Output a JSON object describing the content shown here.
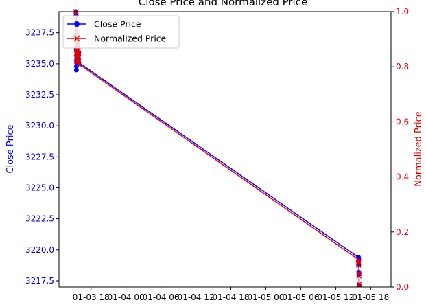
{
  "chart_data": {
    "type": "line",
    "title": "Close Price and Normalized Price",
    "xlabel": "",
    "y_left_label": "Close Price",
    "y_right_label": "Normalized Price",
    "x_tick_labels": [
      "01-03 18",
      "01-04 00",
      "01-04 06",
      "01-04 12",
      "01-04 18",
      "01-05 00",
      "01-05 06",
      "01-05 12",
      "01-05 18"
    ],
    "x_tick_hours": [
      18,
      24,
      30,
      36,
      42,
      48,
      54,
      60,
      66
    ],
    "xlim_hours": [
      12.5,
      69.5
    ],
    "y_left_ticks": [
      3217.5,
      3220.0,
      3222.5,
      3225.0,
      3227.5,
      3230.0,
      3232.5,
      3235.0,
      3237.5
    ],
    "y_left_tick_labels": [
      "3217.5",
      "3220.0",
      "3222.5",
      "3225.0",
      "3227.5",
      "3230.0",
      "3232.5",
      "3235.0",
      "3237.5"
    ],
    "y_left_lim": [
      3217.0,
      3239.2
    ],
    "y_right_ticks": [
      0.0,
      0.2,
      0.4,
      0.6,
      0.8,
      1.0
    ],
    "y_right_tick_labels": [
      "0.0",
      "0.2",
      "0.4",
      "0.6",
      "0.8",
      "1.0"
    ],
    "y_right_lim": [
      0.0,
      1.0
    ],
    "colors": {
      "close": "#0000ff",
      "normalized": "#e00000",
      "left_axis_text": "#0000cc",
      "right_axis_text": "#e00000"
    },
    "legend": {
      "placement": "top-left",
      "entries": [
        {
          "label": "Close Price",
          "series": "close"
        },
        {
          "label": "Normalized Price",
          "series": "normalized"
        }
      ]
    },
    "series": [
      {
        "key": "close",
        "name": "Close Price",
        "axis": "left",
        "marker": "circle",
        "x_hours": [
          15.42,
          15.44,
          15.46,
          15.48,
          15.5,
          15.52,
          15.54,
          15.56,
          15.58,
          15.6,
          15.62,
          15.64,
          15.66,
          15.68,
          15.7,
          15.72,
          15.74,
          15.76,
          15.78,
          15.8,
          15.82,
          15.84,
          15.86,
          15.88,
          15.9,
          63.9,
          63.92,
          63.94,
          63.96,
          63.98,
          64.0,
          64.02,
          64.04
        ],
        "values": [
          3239.2,
          3238.9,
          3236.2,
          3234.5,
          3234.8,
          3235.2,
          3235.6,
          3236.0,
          3236.4,
          3235.8,
          3235.3,
          3235.9,
          3235.4,
          3235.1,
          3235.8,
          3235.5,
          3235.0,
          3235.6,
          3236.3,
          3235.2,
          3235.7,
          3235.4,
          3235.1,
          3235.9,
          3235.1,
          3219.4,
          3219.1,
          3218.8,
          3219.3,
          3218.2,
          3218.0,
          3217.1,
          3217.0
        ]
      },
      {
        "key": "normalized",
        "name": "Normalized Price",
        "axis": "right",
        "marker": "x",
        "x_hours": [
          15.42,
          15.44,
          15.46,
          15.48,
          15.5,
          15.52,
          15.54,
          15.56,
          15.58,
          15.6,
          15.62,
          15.64,
          15.66,
          15.68,
          15.7,
          15.72,
          15.74,
          15.76,
          15.78,
          15.8,
          15.82,
          15.84,
          15.86,
          15.88,
          15.9,
          63.9,
          63.92,
          63.94,
          63.96,
          63.98,
          64.0,
          64.02,
          64.04
        ],
        "values": [
          1.0,
          0.97,
          0.92,
          0.88,
          0.85,
          0.82,
          0.86,
          0.9,
          0.94,
          0.88,
          0.84,
          0.89,
          0.85,
          0.83,
          0.87,
          0.84,
          0.82,
          0.86,
          0.91,
          0.83,
          0.86,
          0.84,
          0.82,
          0.85,
          0.81,
          0.1,
          0.09,
          0.08,
          0.09,
          0.05,
          0.04,
          0.01,
          0.0
        ]
      }
    ]
  }
}
